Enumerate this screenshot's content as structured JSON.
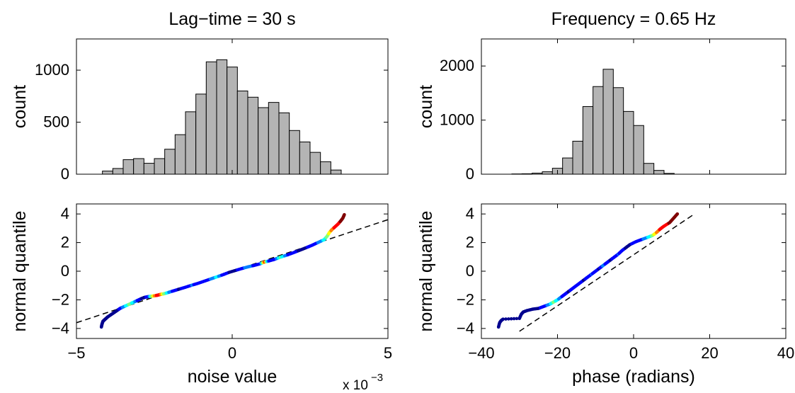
{
  "chart_data": [
    {
      "type": "bar",
      "title": "Lag−time = 30 s",
      "xlabel": "",
      "ylabel": "count",
      "xlim": [
        -5,
        5
      ],
      "ylim": [
        0,
        1300
      ],
      "yticks": [
        0,
        500,
        1000
      ],
      "bin_width": 0.3333,
      "bin_centers": [
        -4.0,
        -3.667,
        -3.333,
        -3.0,
        -2.667,
        -2.333,
        -2.0,
        -1.667,
        -1.333,
        -1.0,
        -0.667,
        -0.333,
        0.0,
        0.333,
        0.667,
        1.0,
        1.333,
        1.667,
        2.0,
        2.333,
        2.667,
        3.0,
        3.333
      ],
      "values": [
        30,
        55,
        140,
        150,
        105,
        150,
        240,
        380,
        600,
        770,
        1080,
        1100,
        1030,
        800,
        740,
        640,
        690,
        590,
        420,
        310,
        210,
        120,
        40
      ]
    },
    {
      "type": "bar",
      "title": "Frequency = 0.65 Hz",
      "xlabel": "",
      "ylabel": "count",
      "xlim": [
        -40,
        40
      ],
      "ylim": [
        0,
        2500
      ],
      "yticks": [
        0,
        1000,
        2000
      ],
      "bin_width": 2.6667,
      "bin_centers": [
        -30.667,
        -28.0,
        -25.333,
        -22.667,
        -20.0,
        -17.333,
        -14.667,
        -12.0,
        -9.333,
        -6.667,
        -4.0,
        -1.333,
        1.333,
        4.0,
        6.667,
        9.333
      ],
      "values": [
        5,
        8,
        20,
        45,
        110,
        300,
        610,
        1250,
        1620,
        1940,
        1600,
        1160,
        900,
        200,
        70,
        15
      ]
    },
    {
      "type": "scatter",
      "title": "",
      "xlabel": "noise value",
      "ylabel": "normal quantile",
      "x_scale_label": "x 10",
      "x_scale_exponent": "−3",
      "xlim": [
        -5,
        5
      ],
      "ylim": [
        -4.7,
        4.7
      ],
      "xticks": [
        -5,
        0,
        5
      ],
      "yticks": [
        -4,
        -2,
        0,
        2,
        4
      ],
      "reference_line": [
        [
          -5,
          -3.6
        ],
        [
          5,
          3.6
        ]
      ],
      "points": [
        [
          -4.2,
          -3.9,
          0
        ],
        [
          -4.18,
          -3.7,
          0
        ],
        [
          -4.15,
          -3.5,
          0
        ],
        [
          -4.1,
          -3.4,
          0
        ],
        [
          -4.05,
          -3.3,
          0
        ],
        [
          -4.0,
          -3.2,
          0
        ],
        [
          -3.9,
          -3.05,
          0
        ],
        [
          -3.8,
          -2.9,
          0
        ],
        [
          -3.7,
          -2.75,
          0
        ],
        [
          -3.6,
          -2.6,
          0.1
        ],
        [
          -3.45,
          -2.45,
          0.3
        ],
        [
          -3.3,
          -2.3,
          0.5
        ],
        [
          -3.15,
          -2.15,
          0.35
        ],
        [
          -3.0,
          -2.0,
          0.1
        ],
        [
          -2.9,
          -1.9,
          0.05
        ],
        [
          -2.8,
          -1.82,
          0.05
        ],
        [
          -2.7,
          -1.78,
          0.1
        ],
        [
          -2.6,
          -1.75,
          0.45
        ],
        [
          -2.5,
          -1.72,
          0.7
        ],
        [
          -2.4,
          -1.68,
          0.9
        ],
        [
          -2.3,
          -1.62,
          0.8
        ],
        [
          -2.2,
          -1.58,
          0.55
        ],
        [
          -2.1,
          -1.52,
          0.4
        ],
        [
          -2.0,
          -1.45,
          0.25
        ],
        [
          -1.85,
          -1.35,
          0.1
        ],
        [
          -1.7,
          -1.25,
          0.05
        ],
        [
          -1.5,
          -1.12,
          0.1
        ],
        [
          -1.3,
          -0.98,
          0.2
        ],
        [
          -1.1,
          -0.85,
          0.15
        ],
        [
          -0.9,
          -0.7,
          0.1
        ],
        [
          -0.7,
          -0.55,
          0.2
        ],
        [
          -0.5,
          -0.4,
          0.35
        ],
        [
          -0.3,
          -0.25,
          0.15
        ],
        [
          -0.1,
          -0.08,
          0.05
        ],
        [
          0.1,
          0.05,
          0.05
        ],
        [
          0.3,
          0.18,
          0.1
        ],
        [
          0.5,
          0.3,
          0.3
        ],
        [
          0.7,
          0.4,
          0.15
        ],
        [
          0.9,
          0.52,
          0.1
        ],
        [
          1.05,
          0.65,
          0.9
        ],
        [
          1.15,
          0.7,
          0.2
        ],
        [
          1.35,
          0.82,
          0.1
        ],
        [
          1.55,
          0.98,
          0.45
        ],
        [
          1.75,
          1.12,
          0.2
        ],
        [
          1.95,
          1.28,
          0.1
        ],
        [
          2.15,
          1.45,
          0.05
        ],
        [
          2.35,
          1.62,
          0.05
        ],
        [
          2.55,
          1.8,
          0.1
        ],
        [
          2.75,
          2.0,
          0.2
        ],
        [
          2.95,
          2.2,
          0.35
        ],
        [
          3.05,
          2.45,
          0.5
        ],
        [
          3.12,
          2.7,
          0.6
        ],
        [
          3.2,
          2.9,
          0.75
        ],
        [
          3.3,
          3.1,
          0.85
        ],
        [
          3.4,
          3.3,
          0.9
        ],
        [
          3.48,
          3.5,
          0.95
        ],
        [
          3.55,
          3.7,
          0.95
        ],
        [
          3.6,
          3.95,
          0.98
        ]
      ]
    },
    {
      "type": "scatter",
      "title": "",
      "xlabel": "phase (radians)",
      "ylabel": "normal quantile",
      "xlim": [
        -40,
        40
      ],
      "ylim": [
        -4.7,
        4.7
      ],
      "xticks": [
        -40,
        -20,
        0,
        20,
        40
      ],
      "yticks": [
        -4,
        -2,
        0,
        2,
        4
      ],
      "reference_line": [
        [
          -30,
          -4.2
        ],
        [
          16,
          4.0
        ]
      ],
      "points": [
        [
          -35.5,
          -3.9,
          0
        ],
        [
          -35.2,
          -3.6,
          0
        ],
        [
          -34.8,
          -3.45,
          0
        ],
        [
          -34.3,
          -3.35,
          0
        ],
        [
          -30,
          -3.3,
          0
        ],
        [
          -29.5,
          -3.0,
          0
        ],
        [
          -29.0,
          -2.85,
          0
        ],
        [
          -28.0,
          -2.75,
          0
        ],
        [
          -26.5,
          -2.65,
          0
        ],
        [
          -25.0,
          -2.6,
          0.05
        ],
        [
          -23.5,
          -2.45,
          0.1
        ],
        [
          -22.0,
          -2.3,
          0.3
        ],
        [
          -21.0,
          -2.15,
          0.5
        ],
        [
          -20.0,
          -2.0,
          0.35
        ],
        [
          -19.0,
          -1.8,
          0.2
        ],
        [
          -18.0,
          -1.6,
          0.1
        ],
        [
          -17.0,
          -1.4,
          0.05
        ],
        [
          -16.0,
          -1.2,
          0.1
        ],
        [
          -15.0,
          -1.0,
          0.15
        ],
        [
          -14.0,
          -0.8,
          0.1
        ],
        [
          -13.0,
          -0.6,
          0.05
        ],
        [
          -12.0,
          -0.4,
          0.1
        ],
        [
          -11.0,
          -0.2,
          0.2
        ],
        [
          -10.0,
          0.0,
          0.1
        ],
        [
          -9.0,
          0.2,
          0.05
        ],
        [
          -8.0,
          0.4,
          0.25
        ],
        [
          -7.0,
          0.6,
          0.1
        ],
        [
          -6.0,
          0.8,
          0.05
        ],
        [
          -5.0,
          1.0,
          0.1
        ],
        [
          -4.0,
          1.2,
          0.2
        ],
        [
          -3.0,
          1.45,
          0.1
        ],
        [
          -2.0,
          1.65,
          0.05
        ],
        [
          -1.0,
          1.85,
          0.05
        ],
        [
          0.5,
          2.05,
          0.1
        ],
        [
          2.0,
          2.2,
          0.15
        ],
        [
          3.5,
          2.35,
          0.3
        ],
        [
          5.0,
          2.5,
          0.5
        ],
        [
          6.0,
          2.7,
          0.7
        ],
        [
          7.0,
          2.95,
          0.85
        ],
        [
          8.0,
          3.15,
          0.9
        ],
        [
          9.5,
          3.4,
          0.95
        ],
        [
          10.5,
          3.7,
          0.95
        ],
        [
          11.5,
          4.0,
          0.98
        ]
      ]
    }
  ],
  "colors": {
    "bar_fill": "#b4b4b4",
    "bar_stroke": "#000000",
    "axis": "#000000",
    "reference_line": "#000000",
    "colormap": [
      "#00008f",
      "#0000ff",
      "#0080ff",
      "#00ffff",
      "#80ff80",
      "#ffff00",
      "#ff8000",
      "#ff0000",
      "#800000"
    ]
  }
}
